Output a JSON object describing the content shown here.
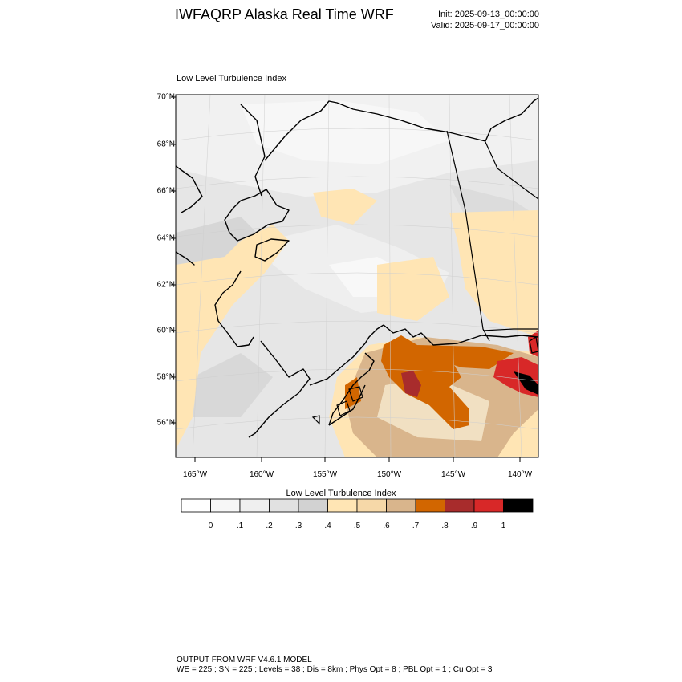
{
  "header": {
    "title": "IWFAQRP Alaska Real Time WRF",
    "init": "Init: 2025-09-13_00:00:00",
    "valid": "Valid: 2025-09-17_00:00:00"
  },
  "panel": {
    "title": "Low Level Turbulence Index"
  },
  "axes": {
    "lat_labels": [
      "70°N",
      "68°N",
      "66°N",
      "64°N",
      "62°N",
      "60°N",
      "58°N",
      "56°N"
    ],
    "lon_labels": [
      "165°W",
      "160°W",
      "155°W",
      "150°W",
      "145°W",
      "140°W"
    ]
  },
  "colorbar": {
    "title": "Low Level Turbulence Index",
    "labels": [
      "0",
      ".1",
      ".2",
      ".3",
      ".4",
      ".5",
      ".6",
      ".7",
      ".8",
      ".9",
      "1"
    ],
    "colors": [
      "#ffffff",
      "#f7f7f7",
      "#efefef",
      "#e1e1e1",
      "#d2d2d2",
      "#ffe5b4",
      "#f6d8a8",
      "#d9b58c",
      "#d26600",
      "#a82c2c",
      "#d82828",
      "#000000"
    ]
  },
  "footer": {
    "line1": "OUTPUT FROM WRF V4.6.1 MODEL",
    "line2": "WE = 225 ; SN = 225 ; Levels = 38 ; Dis = 8km ; Phys Opt = 8 ; PBL Opt = 1 ; Cu Opt = 3"
  }
}
